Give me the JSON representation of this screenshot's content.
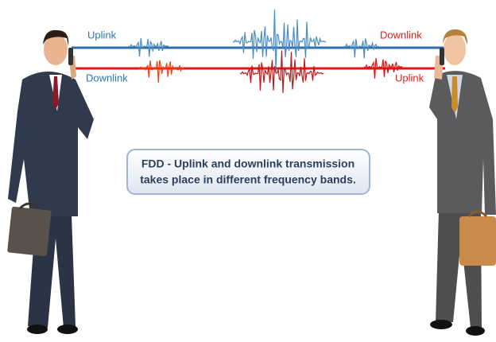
{
  "labels": {
    "left_top": "Uplink",
    "left_bottom": "Downlink",
    "right_top": "Downlink",
    "right_bottom": "Uplink"
  },
  "caption": {
    "lines": [
      "FDD - Uplink and downlink transmission",
      "takes place in different frequency bands."
    ]
  }
}
